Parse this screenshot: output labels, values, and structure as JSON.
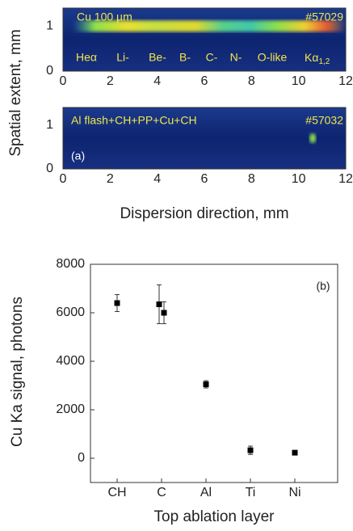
{
  "chart_data": [
    {
      "type": "image",
      "annotations": [
        "Cu 100 µm",
        "#57029",
        "Heα",
        "Li-",
        "Be-",
        "B-",
        "C-",
        "N-",
        "O-like",
        "Kα"
      ],
      "annotation_subscript": "1,2",
      "xlim": [
        0,
        12
      ],
      "xticks": [
        0,
        2,
        4,
        6,
        8,
        10,
        12
      ],
      "ylim": [
        0,
        1.4
      ],
      "yticks": [
        0,
        1
      ]
    },
    {
      "type": "image",
      "annotations": [
        "Al flash+CH+PP+Cu+CH",
        "#57032",
        "(a)"
      ],
      "xlim": [
        0,
        12
      ],
      "xticks": [
        0,
        2,
        4,
        6,
        8,
        10,
        12
      ],
      "ylim": [
        0,
        1.4
      ],
      "yticks": [
        0,
        1
      ],
      "xlabel": "Dispersion direction, mm",
      "ylabel": "Spatial extent, mm"
    },
    {
      "type": "scatter",
      "categories": [
        "CH",
        "C",
        "Al",
        "Ti",
        "Ni"
      ],
      "series": [
        {
          "color": "#000000",
          "values": [
            6400,
            6350,
            3050,
            330,
            230
          ],
          "errors": [
            350,
            800,
            150,
            170,
            40
          ]
        },
        {
          "color": "#000000",
          "values": [
            null,
            6000,
            null,
            null,
            null
          ],
          "errors": [
            null,
            450,
            null,
            null,
            null
          ]
        }
      ],
      "ylim": [
        -1000,
        8000
      ],
      "yticks": [
        0,
        2000,
        4000,
        6000,
        8000
      ],
      "xlabel": "Top ablation layer",
      "ylabel": "Cu Ka signal, photons",
      "annotation": "(b)"
    }
  ]
}
